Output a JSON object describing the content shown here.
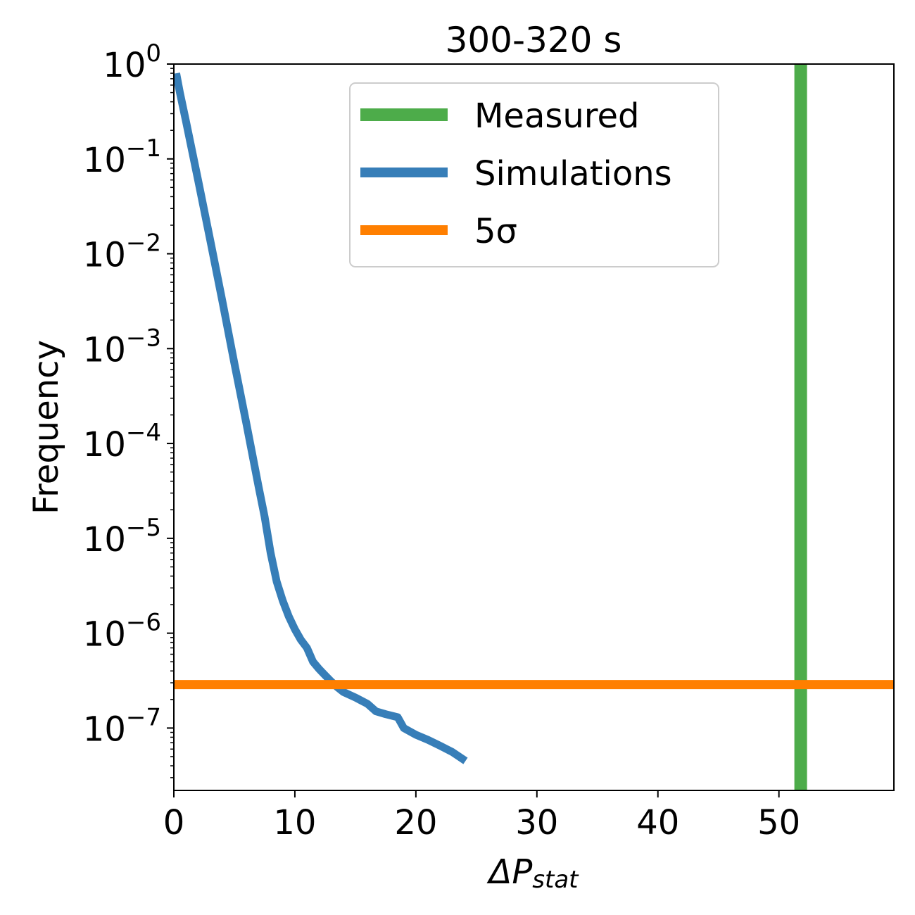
{
  "chart_data": {
    "type": "line",
    "title": "300-320 s",
    "xlabel": {
      "base": "ΔP",
      "subscript": "stat"
    },
    "ylabel": "Frequency",
    "xlim": [
      0,
      59.5
    ],
    "ylim": [
      2.2e-08,
      1
    ],
    "yscale": "log",
    "xticks": [
      {
        "value": 0,
        "label": "0"
      },
      {
        "value": 10,
        "label": "10"
      },
      {
        "value": 20,
        "label": "20"
      },
      {
        "value": 30,
        "label": "30"
      },
      {
        "value": 40,
        "label": "40"
      },
      {
        "value": 50,
        "label": "50"
      }
    ],
    "yticks": [
      {
        "value": 1,
        "base": "10",
        "exp": "0"
      },
      {
        "value": 0.1,
        "base": "10",
        "exp": "−1"
      },
      {
        "value": 0.01,
        "base": "10",
        "exp": "−2"
      },
      {
        "value": 0.001,
        "base": "10",
        "exp": "−3"
      },
      {
        "value": 0.0001,
        "base": "10",
        "exp": "−4"
      },
      {
        "value": 1e-05,
        "base": "10",
        "exp": "−5"
      },
      {
        "value": 1e-06,
        "base": "10",
        "exp": "−6"
      },
      {
        "value": 1e-07,
        "base": "10",
        "exp": "−7"
      }
    ],
    "grid": false,
    "legend_position": "top-center",
    "series": [
      {
        "name": "Measured",
        "kind": "vline",
        "x": 51.8,
        "color": "#4dac4a"
      },
      {
        "name": "Simulations",
        "kind": "line",
        "color": "#377eb8",
        "x": [
          0.2,
          0.5,
          1,
          2,
          3,
          4,
          5,
          6,
          7,
          7.5,
          8,
          8.5,
          9,
          9.5,
          10,
          10.5,
          11,
          11.5,
          12,
          12.5,
          13,
          13.5,
          14,
          15,
          16,
          16.7,
          17.5,
          18.5,
          19,
          20,
          21,
          22,
          23,
          24.1
        ],
        "y": [
          0.8,
          0.5,
          0.25,
          0.06,
          0.014,
          0.0032,
          0.0007,
          0.00016,
          3.5e-05,
          1.7e-05,
          7e-06,
          3.5e-06,
          2.2e-06,
          1.5e-06,
          1.1e-06,
          8.5e-07,
          7e-07,
          5e-07,
          4.2e-07,
          3.6e-07,
          3.1e-07,
          2.7e-07,
          2.4e-07,
          2.1e-07,
          1.8e-07,
          1.5e-07,
          1.4e-07,
          1.3e-07,
          1e-07,
          8.5e-08,
          7.5e-08,
          6.5e-08,
          5.6e-08,
          4.5e-08
        ]
      },
      {
        "name": "5σ",
        "kind": "hline",
        "y": 2.87e-07,
        "color": "#ff7f00"
      }
    ]
  }
}
